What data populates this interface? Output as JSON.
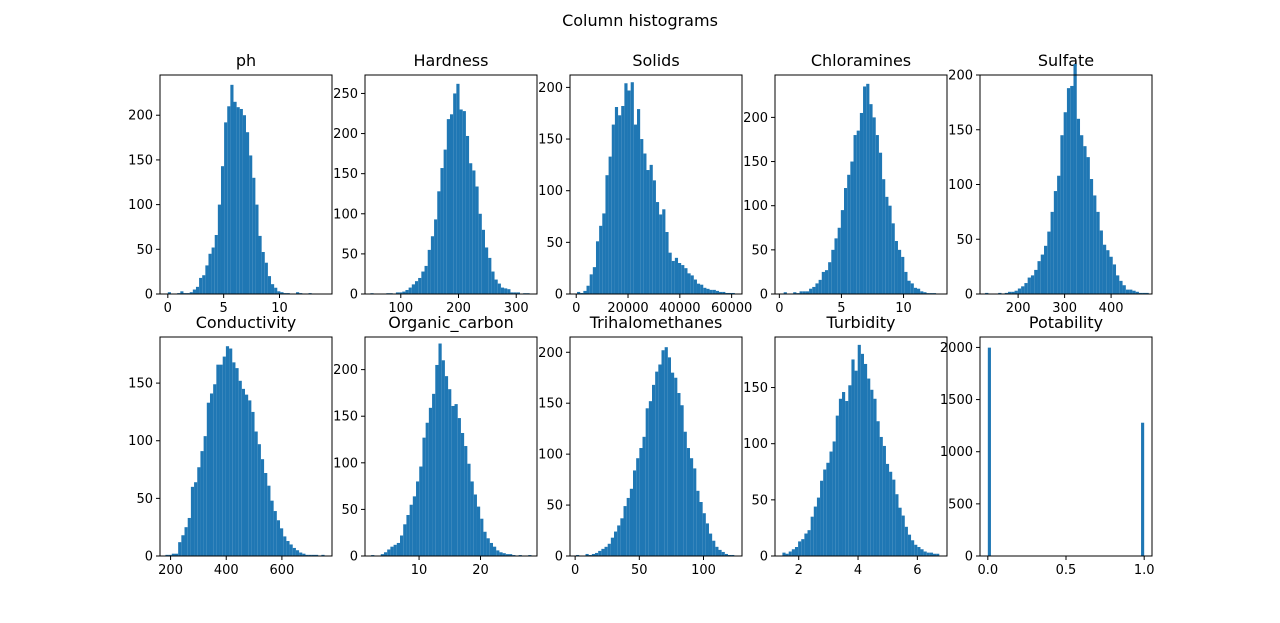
{
  "figure": {
    "title": "Column histograms",
    "bar_color": "#1f77b4"
  },
  "chart_data": [
    {
      "type": "bar",
      "title": "ph",
      "xlim": [
        -0.7,
        14.7
      ],
      "ylim": [
        0,
        245
      ],
      "xticks": [
        0,
        5,
        10
      ],
      "yticks": [
        0,
        50,
        100,
        150,
        200
      ],
      "bin_range": [
        0.0,
        14.0
      ],
      "values": [
        2,
        0,
        0,
        1,
        3,
        1,
        1,
        2,
        5,
        8,
        18,
        21,
        32,
        45,
        52,
        66,
        100,
        143,
        192,
        210,
        234,
        215,
        209,
        207,
        200,
        181,
        155,
        130,
        100,
        65,
        47,
        35,
        20,
        11,
        7,
        3,
        2,
        1,
        1,
        0,
        0,
        2,
        1,
        0,
        0,
        1,
        0,
        0,
        0,
        0
      ]
    },
    {
      "type": "bar",
      "title": "Hardness",
      "xlim": [
        38,
        336
      ],
      "ylim": [
        0,
        273
      ],
      "xticks": [
        100,
        200,
        300
      ],
      "yticks": [
        0,
        50,
        100,
        150,
        200,
        250
      ],
      "bin_range": [
        47.4,
        323.1
      ],
      "values": [
        1,
        0,
        0,
        0,
        0,
        1,
        1,
        0,
        2,
        2,
        3,
        5,
        8,
        12,
        16,
        20,
        28,
        35,
        55,
        72,
        93,
        128,
        157,
        180,
        218,
        224,
        250,
        262,
        230,
        228,
        197,
        163,
        154,
        134,
        100,
        80,
        58,
        45,
        28,
        18,
        13,
        8,
        7,
        6,
        2,
        2,
        2,
        0,
        1,
        1
      ]
    },
    {
      "type": "bar",
      "title": "Solids",
      "xlim": [
        -2400,
        64000
      ],
      "ylim": [
        0,
        212
      ],
      "xticks": [
        0,
        20000,
        40000,
        60000
      ],
      "yticks": [
        0,
        50,
        100,
        150,
        200
      ],
      "bin_range": [
        320.9,
        61227.2
      ],
      "values": [
        2,
        1,
        3,
        8,
        19,
        26,
        51,
        66,
        78,
        115,
        133,
        164,
        181,
        173,
        182,
        204,
        197,
        205,
        164,
        179,
        150,
        136,
        120,
        125,
        110,
        89,
        77,
        82,
        60,
        40,
        32,
        35,
        30,
        28,
        25,
        20,
        18,
        14,
        10,
        9,
        6,
        5,
        4,
        4,
        3,
        2,
        2,
        1,
        1,
        1
      ]
    },
    {
      "type": "bar",
      "title": "Chloramines",
      "xlim": [
        -0.35,
        13.5
      ],
      "ylim": [
        0,
        248
      ],
      "xticks": [
        0,
        5,
        10
      ],
      "yticks": [
        0,
        50,
        100,
        150,
        200
      ],
      "bin_range": [
        0.35,
        13.13
      ],
      "values": [
        2,
        0,
        0,
        2,
        1,
        3,
        3,
        3,
        6,
        8,
        12,
        16,
        25,
        27,
        36,
        50,
        63,
        75,
        95,
        120,
        135,
        150,
        180,
        185,
        205,
        235,
        238,
        215,
        200,
        180,
        160,
        130,
        110,
        100,
        80,
        60,
        50,
        42,
        25,
        15,
        12,
        7,
        6,
        3,
        2,
        1,
        1,
        1,
        0,
        0
      ]
    },
    {
      "type": "bar",
      "title": "Sulfate",
      "xlim": [
        118,
        488
      ],
      "ylim": [
        0,
        200
      ],
      "xticks": [
        200,
        300,
        400
      ],
      "yticks": [
        0,
        50,
        100,
        150,
        200
      ],
      "bin_range": [
        129.0,
        481.0
      ],
      "values": [
        1,
        0,
        0,
        0,
        1,
        0,
        1,
        2,
        2,
        3,
        5,
        7,
        10,
        15,
        17,
        22,
        30,
        36,
        44,
        57,
        75,
        94,
        108,
        145,
        166,
        188,
        190,
        210,
        160,
        145,
        135,
        125,
        105,
        90,
        75,
        58,
        45,
        40,
        34,
        27,
        17,
        12,
        8,
        4,
        4,
        3,
        2,
        1,
        1,
        1
      ]
    },
    {
      "type": "bar",
      "title": "Conductivity",
      "xlim": [
        162,
        780
      ],
      "ylim": [
        0,
        190
      ],
      "xticks": [
        200,
        400,
        600
      ],
      "yticks": [
        0,
        50,
        100,
        150
      ],
      "bin_range": [
        181.5,
        753.3
      ],
      "values": [
        1,
        1,
        2,
        2,
        12,
        18,
        25,
        33,
        60,
        64,
        77,
        91,
        104,
        133,
        141,
        149,
        166,
        166,
        173,
        182,
        180,
        168,
        163,
        152,
        145,
        140,
        135,
        125,
        108,
        97,
        84,
        72,
        61,
        48,
        39,
        31,
        24,
        17,
        13,
        10,
        7,
        5,
        3,
        2,
        1,
        1,
        1,
        1,
        0,
        1
      ]
    },
    {
      "type": "bar",
      "title": "Organic_carbon",
      "xlim": [
        1.2,
        29.2
      ],
      "ylim": [
        0,
        235
      ],
      "xticks": [
        10,
        20
      ],
      "yticks": [
        0,
        50,
        100,
        150,
        200
      ],
      "bin_range": [
        2.2,
        28.3
      ],
      "values": [
        1,
        0,
        0,
        2,
        4,
        7,
        10,
        12,
        14,
        22,
        34,
        44,
        55,
        64,
        80,
        96,
        127,
        143,
        159,
        174,
        205,
        228,
        210,
        193,
        179,
        161,
        163,
        148,
        132,
        118,
        99,
        80,
        66,
        53,
        40,
        26,
        19,
        14,
        10,
        6,
        4,
        3,
        2,
        2,
        1,
        0,
        1,
        0,
        0,
        1
      ]
    },
    {
      "type": "bar",
      "title": "Trihalomethanes",
      "xlim": [
        -4,
        130
      ],
      "ylim": [
        0,
        215
      ],
      "xticks": [
        0,
        50,
        100
      ],
      "yticks": [
        0,
        50,
        100,
        150,
        200
      ],
      "bin_range": [
        0.7,
        124.0
      ],
      "values": [
        1,
        0,
        0,
        2,
        1,
        2,
        3,
        5,
        7,
        9,
        12,
        18,
        24,
        30,
        37,
        49,
        57,
        66,
        84,
        96,
        106,
        117,
        145,
        152,
        168,
        181,
        188,
        202,
        205,
        195,
        180,
        175,
        160,
        148,
        122,
        106,
        96,
        86,
        64,
        53,
        42,
        32,
        22,
        15,
        9,
        6,
        4,
        2,
        1,
        1
      ]
    },
    {
      "type": "bar",
      "title": "Turbidity",
      "xlim": [
        1.2,
        7.0
      ],
      "ylim": [
        0,
        195
      ],
      "xticks": [
        2,
        4,
        6
      ],
      "yticks": [
        0,
        50,
        100,
        150
      ],
      "bin_range": [
        1.45,
        6.74
      ],
      "values": [
        3,
        2,
        4,
        6,
        8,
        13,
        15,
        20,
        23,
        35,
        44,
        52,
        67,
        77,
        83,
        93,
        102,
        125,
        140,
        146,
        138,
        152,
        175,
        165,
        188,
        180,
        171,
        158,
        148,
        140,
        120,
        106,
        98,
        82,
        75,
        68,
        55,
        43,
        36,
        26,
        19,
        14,
        10,
        8,
        6,
        4,
        3,
        3,
        2,
        2
      ]
    },
    {
      "type": "bar",
      "title": "Potability",
      "xlim": [
        -0.05,
        1.05
      ],
      "ylim": [
        0,
        2100
      ],
      "xticks": [
        0.0,
        0.5,
        1.0
      ],
      "xtick_labels": [
        "0.0",
        "0.5",
        "1.0"
      ],
      "yticks": [
        0,
        500,
        1000,
        1500,
        2000
      ],
      "bin_range": [
        0,
        1
      ],
      "values": [
        1998,
        0,
        0,
        0,
        0,
        0,
        0,
        0,
        0,
        0,
        0,
        0,
        0,
        0,
        0,
        0,
        0,
        0,
        0,
        0,
        0,
        0,
        0,
        0,
        0,
        0,
        0,
        0,
        0,
        0,
        0,
        0,
        0,
        0,
        0,
        0,
        0,
        0,
        0,
        0,
        0,
        0,
        0,
        0,
        0,
        0,
        0,
        0,
        0,
        1278
      ]
    }
  ]
}
